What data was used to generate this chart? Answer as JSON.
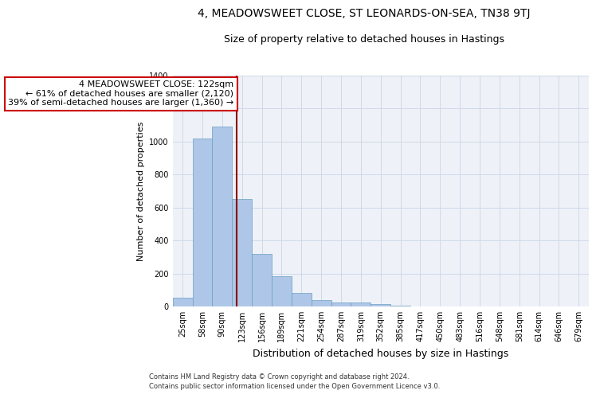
{
  "title": "4, MEADOWSWEET CLOSE, ST LEONARDS-ON-SEA, TN38 9TJ",
  "subtitle": "Size of property relative to detached houses in Hastings",
  "xlabel": "Distribution of detached houses by size in Hastings",
  "ylabel": "Number of detached properties",
  "footnote1": "Contains HM Land Registry data © Crown copyright and database right 2024.",
  "footnote2": "Contains public sector information licensed under the Open Government Licence v3.0.",
  "bar_labels": [
    "25sqm",
    "58sqm",
    "90sqm",
    "123sqm",
    "156sqm",
    "189sqm",
    "221sqm",
    "254sqm",
    "287sqm",
    "319sqm",
    "352sqm",
    "385sqm",
    "417sqm",
    "450sqm",
    "483sqm",
    "516sqm",
    "548sqm",
    "581sqm",
    "614sqm",
    "646sqm",
    "679sqm"
  ],
  "bar_values": [
    55,
    1020,
    1090,
    650,
    320,
    185,
    80,
    40,
    25,
    25,
    15,
    5,
    2,
    2,
    1,
    1,
    0,
    0,
    0,
    0,
    0
  ],
  "bar_color": "#aec6e8",
  "bar_edge_color": "#6a9fc0",
  "grid_color": "#d0d8e8",
  "background_color": "#eef2f8",
  "vline_x_index": 2.73,
  "vline_color": "#8b0000",
  "annotation_text": "4 MEADOWSWEET CLOSE: 122sqm\n← 61% of detached houses are smaller (2,120)\n39% of semi-detached houses are larger (1,360) →",
  "annotation_box_color": "#ffffff",
  "annotation_box_edge_color": "#cc0000",
  "ylim": [
    0,
    1400
  ],
  "yticks": [
    0,
    200,
    400,
    600,
    800,
    1000,
    1200,
    1400
  ],
  "title_fontsize": 10,
  "subtitle_fontsize": 9,
  "xlabel_fontsize": 9,
  "ylabel_fontsize": 8,
  "tick_fontsize": 7,
  "annotation_fontsize": 8,
  "footnote_fontsize": 6
}
